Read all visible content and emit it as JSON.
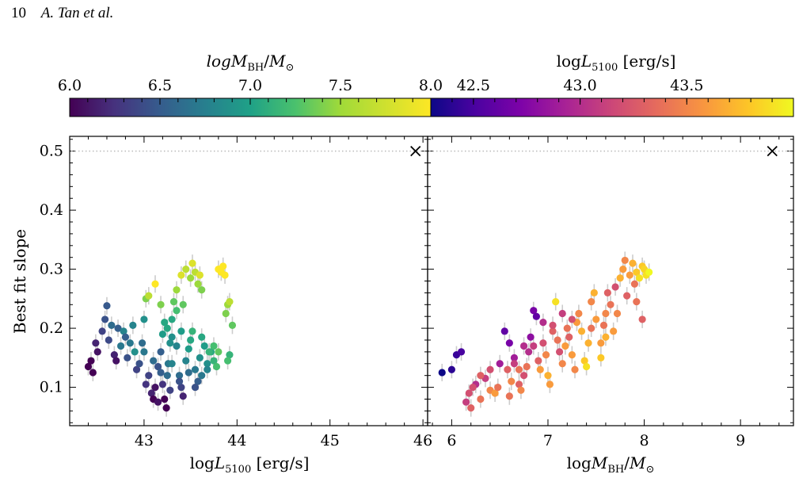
{
  "header": {
    "page_number": "10",
    "authors": "A. Tan et al."
  },
  "chart_data": [
    {
      "type": "scatter",
      "xlabel": "log L_5100 [erg/s]",
      "ylabel": "Best fit slope",
      "xlim": [
        42.2,
        46.05
      ],
      "ylim": [
        0.035,
        0.525
      ],
      "xticks": [
        "43",
        "44",
        "45",
        "46"
      ],
      "yticks": [
        "0.1",
        "0.2",
        "0.3",
        "0.4",
        "0.5"
      ],
      "reference_line": {
        "y": 0.5,
        "style": "dotted",
        "color": "#bbbbbb"
      },
      "reference_marker": {
        "x": 45.92,
        "y": 0.5,
        "symbol": "×"
      },
      "color_by": "log M_BH/M_⊙",
      "colormap": "viridis",
      "colorbar": {
        "label": "log M_BH/M_⊙",
        "range": [
          6.0,
          8.0
        ],
        "ticks": [
          "6.0",
          "6.5",
          "7.0",
          "7.5",
          "8.0"
        ]
      },
      "points": [
        [
          42.4,
          0.135,
          5.9
        ],
        [
          42.45,
          0.125,
          5.95
        ],
        [
          42.43,
          0.145,
          6.0
        ],
        [
          42.5,
          0.16,
          6.1
        ],
        [
          42.48,
          0.175,
          6.2
        ],
        [
          42.55,
          0.195,
          6.4
        ],
        [
          42.58,
          0.215,
          6.5
        ],
        [
          42.6,
          0.238,
          6.55
        ],
        [
          42.62,
          0.18,
          6.45
        ],
        [
          42.65,
          0.205,
          6.7
        ],
        [
          42.68,
          0.155,
          6.2
        ],
        [
          42.7,
          0.145,
          6.1
        ],
        [
          42.72,
          0.2,
          6.6
        ],
        [
          42.75,
          0.17,
          6.8
        ],
        [
          42.78,
          0.195,
          6.9
        ],
        [
          42.8,
          0.185,
          6.6
        ],
        [
          42.82,
          0.15,
          6.5
        ],
        [
          42.85,
          0.175,
          6.8
        ],
        [
          42.88,
          0.205,
          6.9
        ],
        [
          42.9,
          0.16,
          7.0
        ],
        [
          42.92,
          0.13,
          6.4
        ],
        [
          42.95,
          0.14,
          6.5
        ],
        [
          42.98,
          0.175,
          6.7
        ],
        [
          43.0,
          0.215,
          7.0
        ],
        [
          43.02,
          0.25,
          7.6
        ],
        [
          43.05,
          0.12,
          6.4
        ],
        [
          43.08,
          0.09,
          6.2
        ],
        [
          43.1,
          0.08,
          6.0
        ],
        [
          43.12,
          0.1,
          6.1
        ],
        [
          43.15,
          0.135,
          6.5
        ],
        [
          43.18,
          0.16,
          6.6
        ],
        [
          43.2,
          0.105,
          6.3
        ],
        [
          43.22,
          0.08,
          6.0
        ],
        [
          43.24,
          0.065,
          5.9
        ],
        [
          43.26,
          0.14,
          6.8
        ],
        [
          43.28,
          0.175,
          7.0
        ],
        [
          43.3,
          0.215,
          7.2
        ],
        [
          43.32,
          0.245,
          7.5
        ],
        [
          43.35,
          0.265,
          7.7
        ],
        [
          43.05,
          0.255,
          7.8
        ],
        [
          43.12,
          0.275,
          8.0
        ],
        [
          43.18,
          0.24,
          7.6
        ],
        [
          43.22,
          0.21,
          7.2
        ],
        [
          43.38,
          0.12,
          6.7
        ],
        [
          43.4,
          0.1,
          6.4
        ],
        [
          43.42,
          0.085,
          6.2
        ],
        [
          43.45,
          0.145,
          6.9
        ],
        [
          43.48,
          0.165,
          7.1
        ],
        [
          43.5,
          0.18,
          7.2
        ],
        [
          43.52,
          0.195,
          7.3
        ],
        [
          43.55,
          0.13,
          6.8
        ],
        [
          43.58,
          0.11,
          6.6
        ],
        [
          43.6,
          0.15,
          7.0
        ],
        [
          43.62,
          0.185,
          7.2
        ],
        [
          43.65,
          0.17,
          7.1
        ],
        [
          43.68,
          0.14,
          7.0
        ],
        [
          43.72,
          0.16,
          7.2
        ],
        [
          43.75,
          0.145,
          7.3
        ],
        [
          43.78,
          0.135,
          7.4
        ],
        [
          43.8,
          0.16,
          7.5
        ],
        [
          43.45,
          0.3,
          7.8
        ],
        [
          43.5,
          0.285,
          7.7
        ],
        [
          43.52,
          0.31,
          7.9
        ],
        [
          43.55,
          0.295,
          7.8
        ],
        [
          43.58,
          0.275,
          7.7
        ],
        [
          43.6,
          0.29,
          7.9
        ],
        [
          43.62,
          0.265,
          7.6
        ],
        [
          43.4,
          0.29,
          7.9
        ],
        [
          43.42,
          0.24,
          7.5
        ],
        [
          43.35,
          0.23,
          7.4
        ],
        [
          43.8,
          0.3,
          8.2
        ],
        [
          43.83,
          0.295,
          8.3
        ],
        [
          43.85,
          0.305,
          8.1
        ],
        [
          43.87,
          0.29,
          8.0
        ],
        [
          43.9,
          0.24,
          7.7
        ],
        [
          43.92,
          0.245,
          7.8
        ],
        [
          43.88,
          0.225,
          7.6
        ],
        [
          43.95,
          0.205,
          7.5
        ],
        [
          43.92,
          0.155,
          7.3
        ],
        [
          43.9,
          0.145,
          7.4
        ],
        [
          43.3,
          0.14,
          6.9
        ],
        [
          43.25,
          0.12,
          6.7
        ],
        [
          43.18,
          0.125,
          6.6
        ],
        [
          43.1,
          0.145,
          6.7
        ],
        [
          43.0,
          0.16,
          6.8
        ],
        [
          43.02,
          0.105,
          6.3
        ],
        [
          43.15,
          0.075,
          6.1
        ],
        [
          43.28,
          0.095,
          6.4
        ],
        [
          43.38,
          0.11,
          6.5
        ],
        [
          43.48,
          0.125,
          6.7
        ],
        [
          43.55,
          0.1,
          6.5
        ],
        [
          43.62,
          0.12,
          6.8
        ],
        [
          43.68,
          0.13,
          6.9
        ],
        [
          43.7,
          0.16,
          7.3
        ],
        [
          43.75,
          0.17,
          7.4
        ],
        [
          43.2,
          0.19,
          7.1
        ],
        [
          43.25,
          0.2,
          7.2
        ],
        [
          43.3,
          0.185,
          7.0
        ],
        [
          43.35,
          0.17,
          6.9
        ],
        [
          43.4,
          0.195,
          7.1
        ]
      ]
    },
    {
      "type": "scatter",
      "xlabel": "log M_BH/M_⊙",
      "ylabel": "Best fit slope",
      "xlim": [
        5.75,
        9.55
      ],
      "ylim": [
        0.035,
        0.525
      ],
      "xticks": [
        "6",
        "7",
        "8",
        "9"
      ],
      "yticks": [
        "0.1",
        "0.2",
        "0.3",
        "0.4",
        "0.5"
      ],
      "reference_line": {
        "y": 0.5,
        "style": "dotted",
        "color": "#bbbbbb"
      },
      "reference_marker": {
        "x": 9.33,
        "y": 0.5,
        "symbol": "×"
      },
      "color_by": "log L_5100 [erg/s]",
      "colormap": "plasma",
      "colorbar": {
        "label": "log L_5100 [erg/s]",
        "range": [
          42.3,
          44.0
        ],
        "ticks": [
          "42.5",
          "43.0",
          "43.5"
        ]
      },
      "points": [
        [
          5.9,
          0.125,
          42.3
        ],
        [
          6.0,
          0.13,
          42.4
        ],
        [
          6.05,
          0.155,
          42.45
        ],
        [
          6.1,
          0.16,
          42.5
        ],
        [
          6.15,
          0.075,
          43.1
        ],
        [
          6.18,
          0.09,
          43.2
        ],
        [
          6.2,
          0.065,
          43.3
        ],
        [
          6.25,
          0.105,
          43.0
        ],
        [
          6.3,
          0.08,
          43.4
        ],
        [
          6.35,
          0.115,
          43.1
        ],
        [
          6.4,
          0.095,
          43.5
        ],
        [
          6.45,
          0.09,
          43.6
        ],
        [
          6.5,
          0.14,
          42.9
        ],
        [
          6.55,
          0.195,
          42.6
        ],
        [
          6.6,
          0.175,
          42.7
        ],
        [
          6.65,
          0.15,
          42.9
        ],
        [
          6.7,
          0.105,
          43.3
        ],
        [
          6.72,
          0.095,
          43.5
        ],
        [
          6.75,
          0.12,
          43.2
        ],
        [
          6.78,
          0.135,
          43.4
        ],
        [
          6.8,
          0.16,
          43.0
        ],
        [
          6.82,
          0.185,
          42.8
        ],
        [
          6.85,
          0.23,
          42.7
        ],
        [
          6.88,
          0.22,
          42.6
        ],
        [
          6.9,
          0.145,
          43.3
        ],
        [
          6.92,
          0.13,
          43.6
        ],
        [
          6.95,
          0.175,
          43.2
        ],
        [
          6.98,
          0.155,
          43.5
        ],
        [
          7.0,
          0.12,
          43.7
        ],
        [
          7.02,
          0.105,
          43.6
        ],
        [
          7.05,
          0.195,
          43.3
        ],
        [
          7.08,
          0.245,
          43.9
        ],
        [
          7.1,
          0.18,
          43.4
        ],
        [
          7.12,
          0.16,
          43.2
        ],
        [
          7.15,
          0.14,
          43.5
        ],
        [
          7.18,
          0.17,
          43.6
        ],
        [
          7.2,
          0.2,
          43.4
        ],
        [
          7.22,
          0.185,
          43.3
        ],
        [
          7.25,
          0.155,
          43.6
        ],
        [
          7.28,
          0.13,
          43.5
        ],
        [
          7.3,
          0.21,
          43.6
        ],
        [
          7.32,
          0.225,
          43.5
        ],
        [
          7.35,
          0.195,
          43.7
        ],
        [
          7.38,
          0.145,
          43.8
        ],
        [
          7.4,
          0.135,
          43.9
        ],
        [
          7.42,
          0.175,
          43.7
        ],
        [
          7.45,
          0.245,
          43.5
        ],
        [
          7.48,
          0.26,
          43.7
        ],
        [
          7.5,
          0.215,
          43.6
        ],
        [
          7.55,
          0.15,
          43.8
        ],
        [
          7.58,
          0.205,
          43.4
        ],
        [
          7.6,
          0.225,
          43.5
        ],
        [
          7.62,
          0.26,
          43.3
        ],
        [
          7.65,
          0.24,
          43.4
        ],
        [
          7.68,
          0.195,
          43.6
        ],
        [
          7.7,
          0.27,
          43.2
        ],
        [
          7.72,
          0.225,
          43.5
        ],
        [
          7.75,
          0.285,
          43.7
        ],
        [
          7.78,
          0.3,
          43.6
        ],
        [
          7.8,
          0.315,
          43.5
        ],
        [
          7.82,
          0.255,
          43.3
        ],
        [
          7.85,
          0.29,
          43.6
        ],
        [
          7.88,
          0.31,
          43.7
        ],
        [
          7.9,
          0.275,
          43.4
        ],
        [
          7.92,
          0.295,
          43.8
        ],
        [
          7.95,
          0.285,
          43.9
        ],
        [
          7.98,
          0.305,
          43.8
        ],
        [
          8.0,
          0.3,
          43.85
        ],
        [
          8.02,
          0.29,
          43.9
        ],
        [
          8.05,
          0.295,
          44.0
        ],
        [
          7.98,
          0.215,
          43.3
        ],
        [
          7.92,
          0.245,
          43.4
        ],
        [
          7.6,
          0.185,
          43.7
        ],
        [
          7.55,
          0.175,
          43.6
        ],
        [
          7.45,
          0.2,
          43.4
        ],
        [
          7.25,
          0.215,
          43.2
        ],
        [
          7.15,
          0.225,
          43.1
        ],
        [
          7.05,
          0.205,
          43.2
        ],
        [
          6.95,
          0.21,
          43.0
        ],
        [
          6.85,
          0.17,
          43.1
        ],
        [
          6.75,
          0.17,
          43.0
        ],
        [
          6.7,
          0.13,
          43.4
        ],
        [
          6.62,
          0.11,
          43.5
        ],
        [
          6.58,
          0.13,
          43.3
        ],
        [
          6.48,
          0.1,
          43.4
        ],
        [
          6.4,
          0.13,
          43.2
        ],
        [
          6.3,
          0.12,
          43.3
        ],
        [
          6.22,
          0.1,
          43.2
        ],
        [
          6.6,
          0.085,
          43.4
        ],
        [
          6.65,
          0.14,
          43.1
        ]
      ]
    }
  ]
}
